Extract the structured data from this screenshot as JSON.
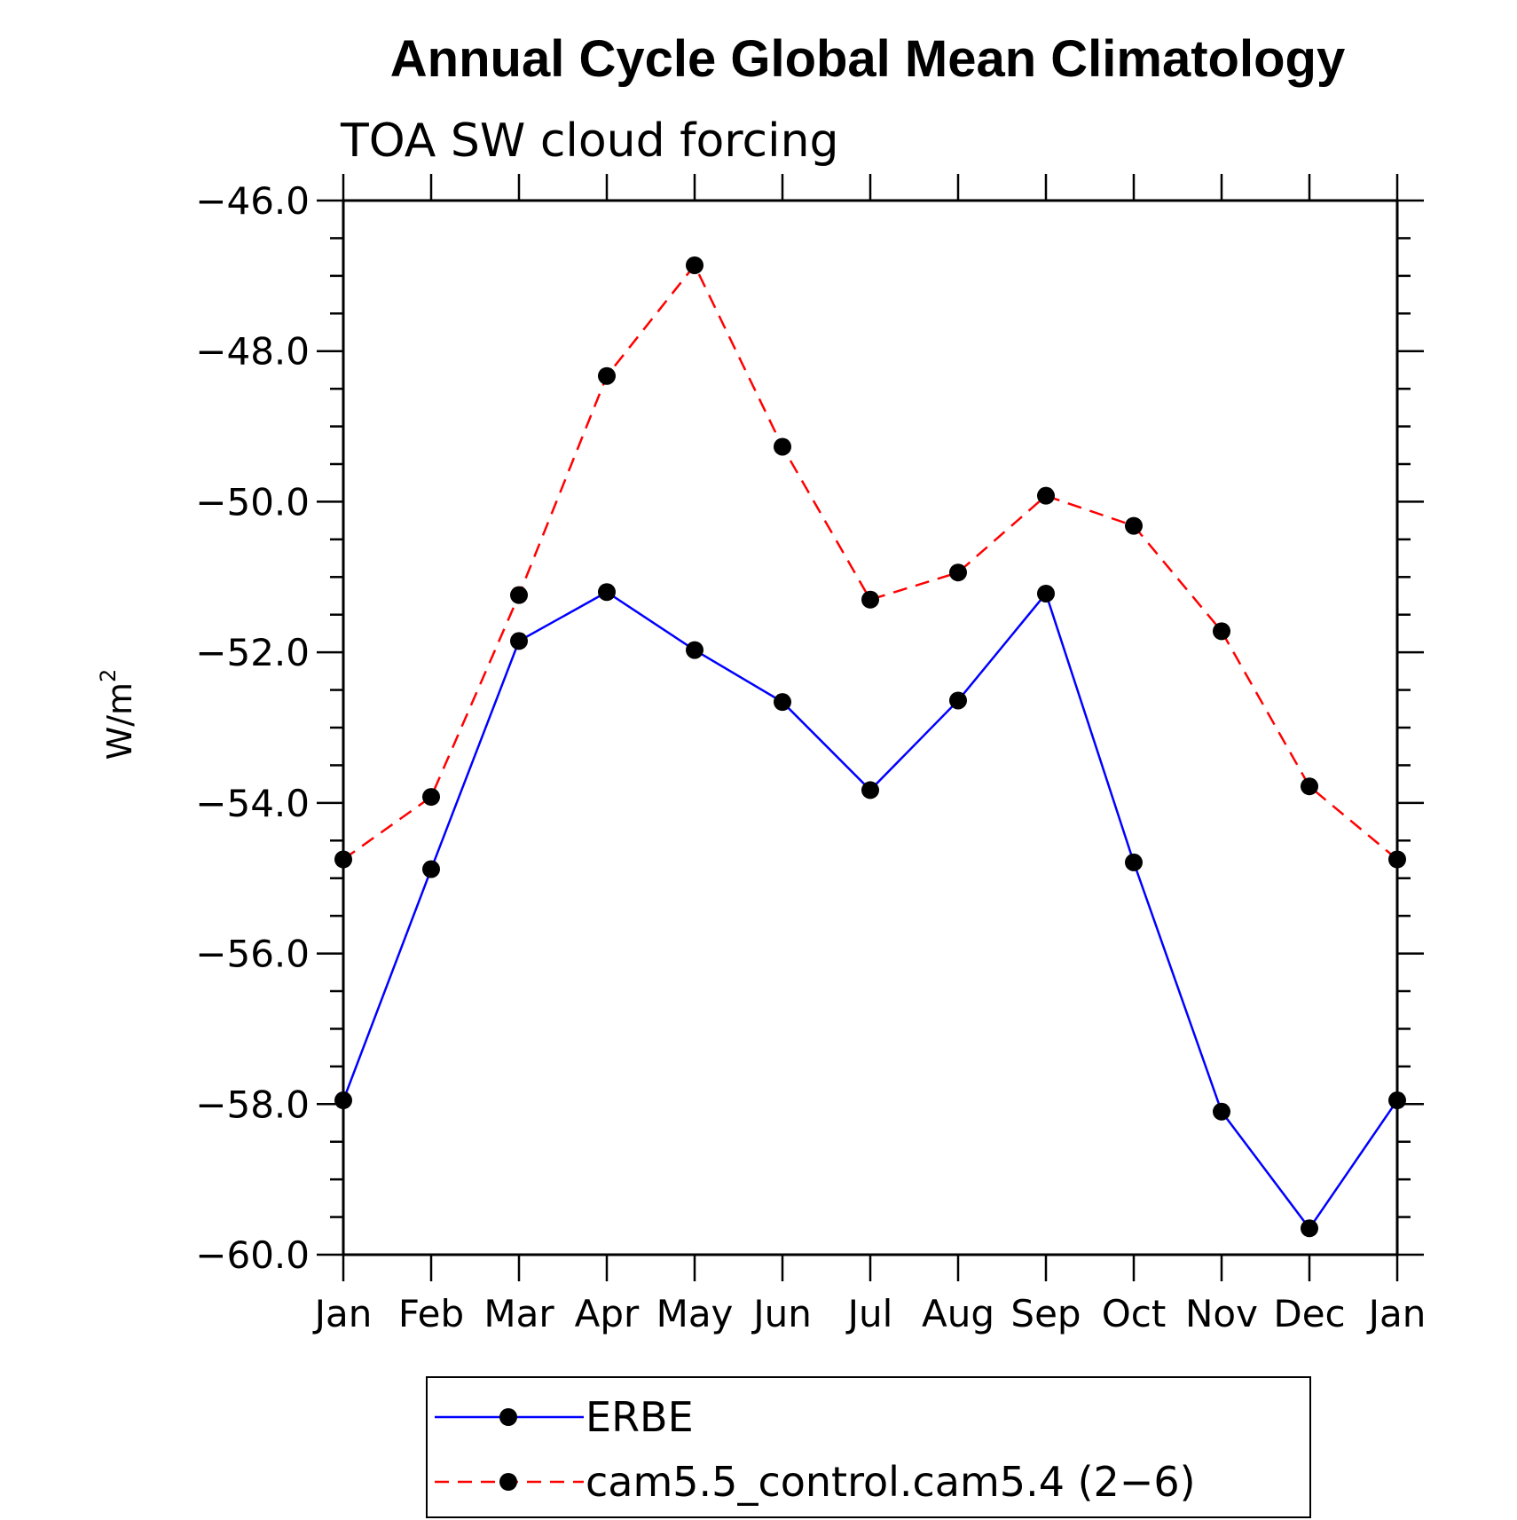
{
  "chart_data": {
    "type": "line",
    "title": "Annual Cycle Global Mean Climatology",
    "subtitle": "TOA SW cloud forcing",
    "xlabel": "",
    "ylabel": "W/m",
    "ylabel_superscript": "2",
    "categories": [
      "Jan",
      "Feb",
      "Mar",
      "Apr",
      "May",
      "Jun",
      "Jul",
      "Aug",
      "Sep",
      "Oct",
      "Nov",
      "Dec",
      "Jan"
    ],
    "ylim": [
      -60.0,
      -46.0
    ],
    "yticks": [
      -46.0,
      -48.0,
      -50.0,
      -52.0,
      -54.0,
      -56.0,
      -58.0,
      -60.0
    ],
    "ytick_labels": [
      "−46.0",
      "−48.0",
      "−50.0",
      "−52.0",
      "−54.0",
      "−56.0",
      "−58.0",
      "−60.0"
    ],
    "yminor_step": 0.5,
    "grid": false,
    "legend_placement": "bottom",
    "series": [
      {
        "name": "ERBE",
        "color": "#0000ff",
        "line_style": "solid",
        "marker": "filled-circle",
        "values": [
          -57.95,
          -54.88,
          -51.85,
          -51.2,
          -51.97,
          -52.66,
          -53.83,
          -52.64,
          -51.22,
          -54.79,
          -58.1,
          -59.65,
          -57.95
        ]
      },
      {
        "name": "cam5.5_control.cam5.4 (2−6)",
        "color": "#ff0000",
        "line_style": "dashed",
        "marker": "filled-circle",
        "values": [
          -54.75,
          -53.92,
          -51.24,
          -48.33,
          -46.86,
          -49.27,
          -51.3,
          -50.94,
          -49.92,
          -50.32,
          -51.72,
          -53.78,
          -54.75
        ]
      }
    ]
  }
}
